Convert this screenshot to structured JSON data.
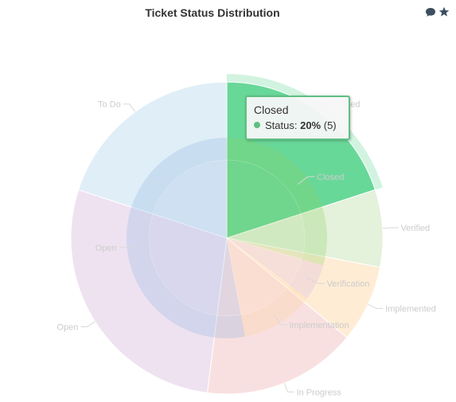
{
  "title": "Ticket Status Distribution",
  "toolbar": {
    "icons": [
      "comment-icon",
      "star-icon"
    ],
    "color": "#3d4e60"
  },
  "chart_data": {
    "type": "pie",
    "title": "Ticket Status Distribution",
    "series_name": "Status",
    "rings": [
      {
        "name": "inner",
        "slices": [
          {
            "label": "Closed",
            "value": 5,
            "color": "#8bcf63"
          },
          {
            "label": "Verification",
            "value": 1,
            "color": "#d7b3e6"
          },
          {
            "label": "Implementation",
            "value": 2,
            "color": "#ffd49e"
          },
          {
            "label": "Open",
            "value": 9,
            "color": "#8bb2df"
          }
        ]
      },
      {
        "name": "outer",
        "slices": [
          {
            "label": "Closed",
            "value": 5,
            "color": "#68d899"
          },
          {
            "label": "Verified",
            "value": 2,
            "color": "#e3f0d9"
          },
          {
            "label": "Implemented",
            "value": 2,
            "color": "#ffebd2"
          },
          {
            "label": "In Progress",
            "value": 4,
            "color": "#f9dede"
          },
          {
            "label": "Open",
            "value": 7,
            "color": "#ede0f0"
          },
          {
            "label": "To Do",
            "value": 5,
            "color": "#deedf7"
          }
        ]
      }
    ],
    "tooltip": {
      "label": "Closed",
      "series": "Status",
      "percent": "20%",
      "count": "(5)",
      "color": "#5fbf82"
    }
  }
}
